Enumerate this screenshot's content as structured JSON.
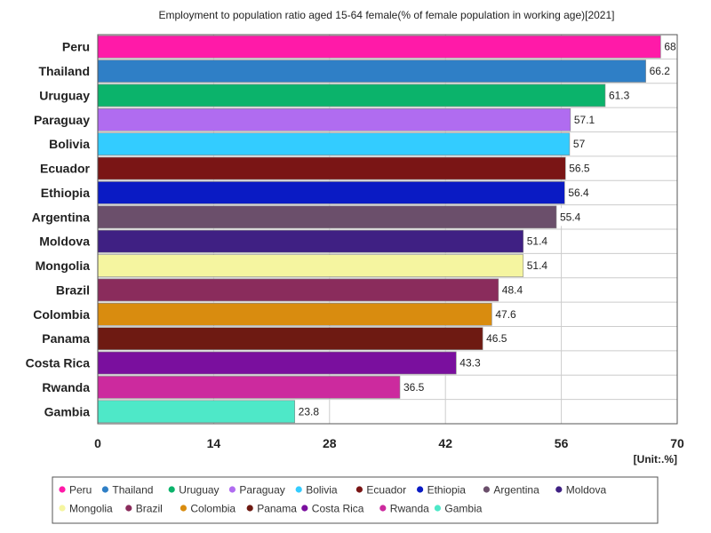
{
  "chart_data": {
    "type": "bar",
    "orientation": "horizontal",
    "title": "Employment to population ratio aged 15-64 female(% of female population in working age)[2021]",
    "unit_label": "[Unit:.%]",
    "xlim": [
      0,
      70
    ],
    "ticks": [
      0,
      14,
      28,
      42,
      56,
      70
    ],
    "grid": true,
    "legend_position": "bottom",
    "categories": [
      "Peru",
      "Thailand",
      "Uruguay",
      "Paraguay",
      "Bolivia",
      "Ecuador",
      "Ethiopia",
      "Argentina",
      "Moldova",
      "Mongolia",
      "Brazil",
      "Colombia",
      "Panama",
      "Costa Rica",
      "Rwanda",
      "Gambia"
    ],
    "values": [
      68,
      66.2,
      61.3,
      57.1,
      57,
      56.5,
      56.4,
      55.4,
      51.4,
      51.4,
      48.4,
      47.6,
      46.5,
      43.3,
      36.5,
      23.8
    ],
    "value_labels": [
      "68",
      "66.2",
      "61.3",
      "57.1",
      "57",
      "56.5",
      "56.4",
      "55.4",
      "51.4",
      "51.4",
      "48.4",
      "47.6",
      "46.5",
      "43.3",
      "36.5",
      "23.8"
    ],
    "colors": [
      "#ff1aa8",
      "#2f7fc6",
      "#0bb36b",
      "#b06cf0",
      "#33ccff",
      "#7a1515",
      "#0a1bc4",
      "#6b4f6b",
      "#3f2083",
      "#f5f5a0",
      "#8a2c5c",
      "#d98c0f",
      "#6e1a12",
      "#7a0f9e",
      "#cc2a9e",
      "#4ee8c8"
    ]
  }
}
